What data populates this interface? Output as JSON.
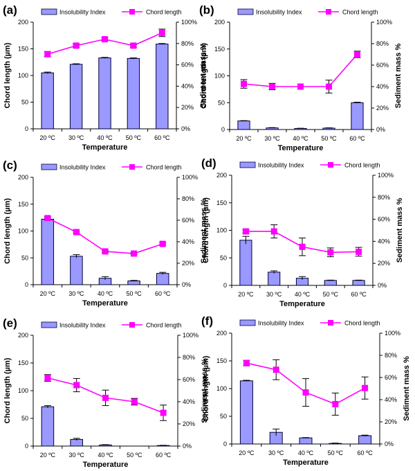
{
  "chart_data": [
    {
      "type": "bar+line",
      "panel": "(a)",
      "categories": [
        "20 ºC",
        "30 ºC",
        "40 ºC",
        "50 ºC",
        "60 ºC"
      ],
      "series": [
        {
          "name": "Insolubility Index",
          "kind": "bar",
          "axis": "right",
          "values": [
            52.5,
            60.5,
            66.5,
            66.0,
            79.5
          ],
          "errors": [
            0.7,
            0.5,
            0.5,
            0.5,
            0.5
          ]
        },
        {
          "name": "Chord length",
          "kind": "line",
          "axis": "left",
          "values": [
            140,
            156,
            168,
            156,
            180
          ],
          "errors": [
            5,
            3,
            3,
            3,
            7
          ]
        }
      ],
      "xlabel": "Temperature",
      "ylabel": "Chord length (µm)",
      "y2label": "Sediment mass %",
      "ylim": [
        0,
        200
      ],
      "yticks": [
        "0",
        "50",
        "100",
        "150",
        "200"
      ],
      "y2lim": [
        0,
        100
      ],
      "y2ticks": [
        "0%",
        "20%",
        "40%",
        "60%",
        "80%",
        "100%"
      ]
    },
    {
      "type": "bar+line",
      "panel": "(b)",
      "categories": [
        "20 ºC",
        "30 ºC",
        "40 ºC",
        "50 ºC",
        "60 ºC"
      ],
      "series": [
        {
          "name": "Insolubility Index",
          "kind": "bar",
          "axis": "right",
          "values": [
            8.0,
            1.5,
            1.0,
            1.3,
            25.0
          ],
          "errors": [
            0.3,
            0.3,
            0.2,
            0.3,
            0.5
          ]
        },
        {
          "name": "Chord length",
          "kind": "line",
          "axis": "left",
          "values": [
            85,
            80,
            80,
            80,
            140
          ],
          "errors": [
            8,
            6,
            0,
            12,
            6
          ]
        }
      ],
      "xlabel": "Temperature",
      "ylabel": "Chord length (µm)",
      "y2label": "Sediment mass %",
      "ylim": [
        0,
        200
      ],
      "yticks": [
        "0",
        "50",
        "100",
        "150",
        "200"
      ],
      "y2lim": [
        0,
        100
      ],
      "y2ticks": [
        "0%",
        "20%",
        "40%",
        "60%",
        "80%",
        "100%"
      ]
    },
    {
      "type": "bar+line",
      "panel": "(c)",
      "categories": [
        "20 ºC",
        "30 ºC",
        "40 ºC",
        "50 ºC",
        "60 ºC"
      ],
      "series": [
        {
          "name": "Insolubility Index",
          "kind": "bar",
          "axis": "right",
          "values": [
            61.0,
            26.5,
            6.0,
            3.5,
            10.5
          ],
          "errors": [
            1.0,
            1.5,
            1.5,
            0.5,
            1.0
          ]
        },
        {
          "name": "Chord length",
          "kind": "line",
          "axis": "left",
          "values": [
            124,
            98,
            62,
            58,
            76
          ],
          "errors": [
            3,
            2,
            2,
            2,
            2
          ]
        }
      ],
      "xlabel": "Temperature",
      "ylabel": "Chord length (µm)",
      "y2label": "Sediment mass %",
      "ylim": [
        0,
        200
      ],
      "yticks": [
        "0",
        "50",
        "100",
        "150",
        "200"
      ],
      "y2lim": [
        0,
        100
      ],
      "y2ticks": [
        "0%",
        "20%",
        "40%",
        "60%",
        "80%",
        "100%"
      ]
    },
    {
      "type": "bar+line",
      "panel": "(d)",
      "categories": [
        "20 ºC",
        "30 ºC",
        "40 ºC",
        "50 ºC",
        "60 ºC"
      ],
      "series": [
        {
          "name": "Insolubility Index",
          "kind": "bar",
          "axis": "right",
          "values": [
            41.0,
            12.0,
            6.5,
            4.5,
            4.5
          ],
          "errors": [
            3.5,
            1.2,
            1.5,
            0.3,
            0.3
          ]
        },
        {
          "name": "Chord length",
          "kind": "line",
          "axis": "left",
          "values": [
            98,
            98,
            70,
            60,
            61
          ],
          "errors": [
            3,
            12,
            16,
            8,
            8
          ]
        }
      ],
      "xlabel": "Temperature",
      "ylabel": "Chord length (µm)",
      "y2label": "Sediment mass %",
      "ylim": [
        0,
        200
      ],
      "yticks": [
        "0",
        "50",
        "100",
        "150",
        "200"
      ],
      "y2lim": [
        0,
        100
      ],
      "y2ticks": [
        "0%",
        "20%",
        "40%",
        "60%",
        "80%",
        "100%"
      ]
    },
    {
      "type": "bar+line",
      "panel": "(e)",
      "categories": [
        "20 ºC",
        "30 ºC",
        "40 ºC",
        "50 ºC",
        "60 ºC"
      ],
      "series": [
        {
          "name": "Insolubility Index",
          "kind": "bar",
          "axis": "right",
          "values": [
            35.5,
            6.0,
            1.0,
            0.0,
            0.5
          ],
          "errors": [
            1.0,
            1.0,
            0.3,
            0.0,
            0.2
          ]
        },
        {
          "name": "Chord length",
          "kind": "line",
          "axis": "left",
          "values": [
            123,
            110,
            87,
            80,
            60
          ],
          "errors": [
            6,
            12,
            14,
            6,
            14
          ]
        }
      ],
      "xlabel": "Temperature",
      "ylabel": "Chord length (µm)",
      "y2label": "Sediment mass %",
      "ylim": [
        0,
        200
      ],
      "yticks": [
        "0",
        "50",
        "100",
        "150",
        "200"
      ],
      "y2lim": [
        0,
        100
      ],
      "y2ticks": [
        "0%",
        "20%",
        "40%",
        "60%",
        "80%",
        "100%"
      ]
    },
    {
      "type": "bar+line",
      "panel": "(f)",
      "categories": [
        "20 ºC",
        "30 ºC",
        "40 ºC",
        "50 ºC",
        "60 ºC"
      ],
      "series": [
        {
          "name": "Insolubility Index",
          "kind": "bar",
          "axis": "right",
          "values": [
            57.0,
            10.5,
            5.5,
            0.5,
            7.5
          ],
          "errors": [
            0.5,
            3.0,
            0.3,
            0.3,
            0.5
          ]
        },
        {
          "name": "Chord length",
          "kind": "line",
          "axis": "left",
          "values": [
            146,
            134,
            93,
            72,
            101
          ],
          "errors": [
            5,
            18,
            25,
            20,
            20
          ]
        }
      ],
      "xlabel": "Temperature",
      "ylabel": "Chord length (µm)",
      "y2label": "Sediment mass %",
      "ylim": [
        0,
        200
      ],
      "yticks": [
        "0",
        "50",
        "100",
        "150",
        "200"
      ],
      "y2lim": [
        0,
        100
      ],
      "y2ticks": [
        "0%",
        "20%",
        "40%",
        "60%",
        "80%",
        "100%"
      ]
    }
  ],
  "colors": {
    "bar_fill": "#9999ff",
    "bar_stroke": "#000033",
    "line": "#ff00ff",
    "axis": "#000000"
  }
}
